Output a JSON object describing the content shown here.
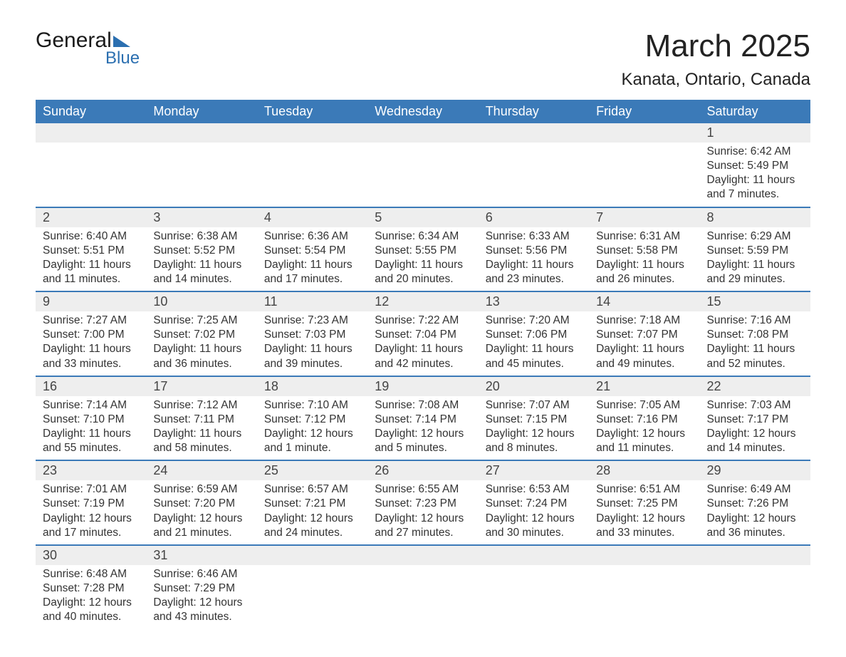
{
  "logo": {
    "text_top": "General",
    "text_bottom": "Blue",
    "accent_color": "#2b6fb0"
  },
  "header": {
    "month_title": "March 2025",
    "location": "Kanata, Ontario, Canada"
  },
  "calendar": {
    "type": "table",
    "header_bg": "#3b7ab8",
    "header_fg": "#ffffff",
    "daynum_bg": "#eeeeee",
    "row_border_color": "#3b7ab8",
    "body_bg": "#ffffff",
    "text_color": "#333333",
    "header_fontsize": 18,
    "body_fontsize": 15.5,
    "days": [
      "Sunday",
      "Monday",
      "Tuesday",
      "Wednesday",
      "Thursday",
      "Friday",
      "Saturday"
    ],
    "weeks": [
      [
        null,
        null,
        null,
        null,
        null,
        null,
        {
          "n": "1",
          "sunrise": "Sunrise: 6:42 AM",
          "sunset": "Sunset: 5:49 PM",
          "daylight": "Daylight: 11 hours and 7 minutes."
        }
      ],
      [
        {
          "n": "2",
          "sunrise": "Sunrise: 6:40 AM",
          "sunset": "Sunset: 5:51 PM",
          "daylight": "Daylight: 11 hours and 11 minutes."
        },
        {
          "n": "3",
          "sunrise": "Sunrise: 6:38 AM",
          "sunset": "Sunset: 5:52 PM",
          "daylight": "Daylight: 11 hours and 14 minutes."
        },
        {
          "n": "4",
          "sunrise": "Sunrise: 6:36 AM",
          "sunset": "Sunset: 5:54 PM",
          "daylight": "Daylight: 11 hours and 17 minutes."
        },
        {
          "n": "5",
          "sunrise": "Sunrise: 6:34 AM",
          "sunset": "Sunset: 5:55 PM",
          "daylight": "Daylight: 11 hours and 20 minutes."
        },
        {
          "n": "6",
          "sunrise": "Sunrise: 6:33 AM",
          "sunset": "Sunset: 5:56 PM",
          "daylight": "Daylight: 11 hours and 23 minutes."
        },
        {
          "n": "7",
          "sunrise": "Sunrise: 6:31 AM",
          "sunset": "Sunset: 5:58 PM",
          "daylight": "Daylight: 11 hours and 26 minutes."
        },
        {
          "n": "8",
          "sunrise": "Sunrise: 6:29 AM",
          "sunset": "Sunset: 5:59 PM",
          "daylight": "Daylight: 11 hours and 29 minutes."
        }
      ],
      [
        {
          "n": "9",
          "sunrise": "Sunrise: 7:27 AM",
          "sunset": "Sunset: 7:00 PM",
          "daylight": "Daylight: 11 hours and 33 minutes."
        },
        {
          "n": "10",
          "sunrise": "Sunrise: 7:25 AM",
          "sunset": "Sunset: 7:02 PM",
          "daylight": "Daylight: 11 hours and 36 minutes."
        },
        {
          "n": "11",
          "sunrise": "Sunrise: 7:23 AM",
          "sunset": "Sunset: 7:03 PM",
          "daylight": "Daylight: 11 hours and 39 minutes."
        },
        {
          "n": "12",
          "sunrise": "Sunrise: 7:22 AM",
          "sunset": "Sunset: 7:04 PM",
          "daylight": "Daylight: 11 hours and 42 minutes."
        },
        {
          "n": "13",
          "sunrise": "Sunrise: 7:20 AM",
          "sunset": "Sunset: 7:06 PM",
          "daylight": "Daylight: 11 hours and 45 minutes."
        },
        {
          "n": "14",
          "sunrise": "Sunrise: 7:18 AM",
          "sunset": "Sunset: 7:07 PM",
          "daylight": "Daylight: 11 hours and 49 minutes."
        },
        {
          "n": "15",
          "sunrise": "Sunrise: 7:16 AM",
          "sunset": "Sunset: 7:08 PM",
          "daylight": "Daylight: 11 hours and 52 minutes."
        }
      ],
      [
        {
          "n": "16",
          "sunrise": "Sunrise: 7:14 AM",
          "sunset": "Sunset: 7:10 PM",
          "daylight": "Daylight: 11 hours and 55 minutes."
        },
        {
          "n": "17",
          "sunrise": "Sunrise: 7:12 AM",
          "sunset": "Sunset: 7:11 PM",
          "daylight": "Daylight: 11 hours and 58 minutes."
        },
        {
          "n": "18",
          "sunrise": "Sunrise: 7:10 AM",
          "sunset": "Sunset: 7:12 PM",
          "daylight": "Daylight: 12 hours and 1 minute."
        },
        {
          "n": "19",
          "sunrise": "Sunrise: 7:08 AM",
          "sunset": "Sunset: 7:14 PM",
          "daylight": "Daylight: 12 hours and 5 minutes."
        },
        {
          "n": "20",
          "sunrise": "Sunrise: 7:07 AM",
          "sunset": "Sunset: 7:15 PM",
          "daylight": "Daylight: 12 hours and 8 minutes."
        },
        {
          "n": "21",
          "sunrise": "Sunrise: 7:05 AM",
          "sunset": "Sunset: 7:16 PM",
          "daylight": "Daylight: 12 hours and 11 minutes."
        },
        {
          "n": "22",
          "sunrise": "Sunrise: 7:03 AM",
          "sunset": "Sunset: 7:17 PM",
          "daylight": "Daylight: 12 hours and 14 minutes."
        }
      ],
      [
        {
          "n": "23",
          "sunrise": "Sunrise: 7:01 AM",
          "sunset": "Sunset: 7:19 PM",
          "daylight": "Daylight: 12 hours and 17 minutes."
        },
        {
          "n": "24",
          "sunrise": "Sunrise: 6:59 AM",
          "sunset": "Sunset: 7:20 PM",
          "daylight": "Daylight: 12 hours and 21 minutes."
        },
        {
          "n": "25",
          "sunrise": "Sunrise: 6:57 AM",
          "sunset": "Sunset: 7:21 PM",
          "daylight": "Daylight: 12 hours and 24 minutes."
        },
        {
          "n": "26",
          "sunrise": "Sunrise: 6:55 AM",
          "sunset": "Sunset: 7:23 PM",
          "daylight": "Daylight: 12 hours and 27 minutes."
        },
        {
          "n": "27",
          "sunrise": "Sunrise: 6:53 AM",
          "sunset": "Sunset: 7:24 PM",
          "daylight": "Daylight: 12 hours and 30 minutes."
        },
        {
          "n": "28",
          "sunrise": "Sunrise: 6:51 AM",
          "sunset": "Sunset: 7:25 PM",
          "daylight": "Daylight: 12 hours and 33 minutes."
        },
        {
          "n": "29",
          "sunrise": "Sunrise: 6:49 AM",
          "sunset": "Sunset: 7:26 PM",
          "daylight": "Daylight: 12 hours and 36 minutes."
        }
      ],
      [
        {
          "n": "30",
          "sunrise": "Sunrise: 6:48 AM",
          "sunset": "Sunset: 7:28 PM",
          "daylight": "Daylight: 12 hours and 40 minutes."
        },
        {
          "n": "31",
          "sunrise": "Sunrise: 6:46 AM",
          "sunset": "Sunset: 7:29 PM",
          "daylight": "Daylight: 12 hours and 43 minutes."
        },
        null,
        null,
        null,
        null,
        null
      ]
    ]
  }
}
